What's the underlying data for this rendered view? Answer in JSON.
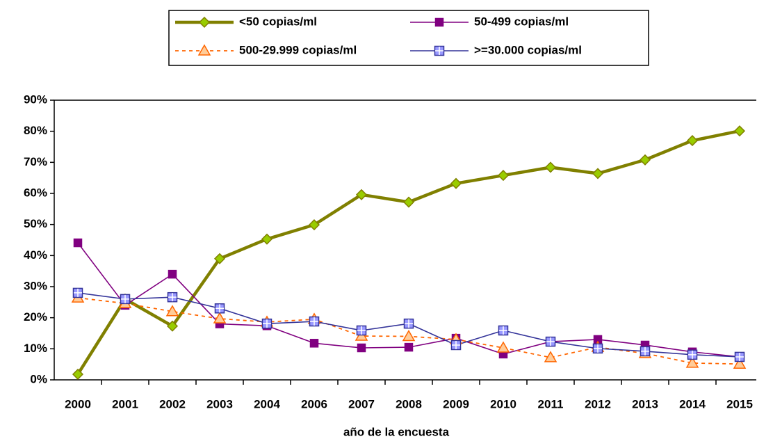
{
  "chart_data": {
    "type": "line",
    "x_label": "año de la encuesta",
    "categories": [
      "2000",
      "2001",
      "2002",
      "2003",
      "2004",
      "2006",
      "2007",
      "2008",
      "2009",
      "2010",
      "2011",
      "2012",
      "2013",
      "2014",
      "2015"
    ],
    "series": [
      {
        "name": "<50 copias/ml",
        "color": "#808000",
        "values": [
          1.8,
          26,
          17.3,
          39,
          45.3,
          49.9,
          59.6,
          57.2,
          63.2,
          65.8,
          68.4,
          66.4,
          70.8,
          77,
          80.1
        ]
      },
      {
        "name": "50-499 copias/ml",
        "color": "#800080",
        "values": [
          44.1,
          24,
          34,
          18,
          17.4,
          11.8,
          10.3,
          10.5,
          13.4,
          8.3,
          12.3,
          13,
          11.2,
          9,
          7.4
        ]
      },
      {
        "name": "500-29.999 copias/ml",
        "color": "#ff6600",
        "values": [
          26.4,
          24.6,
          22,
          19.7,
          18.6,
          19.5,
          14.1,
          14,
          13,
          10.3,
          7.2,
          10.5,
          8.5,
          5.4,
          5.1
        ]
      },
      {
        "name": ">=30.000 copias/ml",
        "color": "#333399",
        "values": [
          28,
          26,
          26.6,
          23,
          18.1,
          18.8,
          15.9,
          18.1,
          11.2,
          15.9,
          12.3,
          10.1,
          9.2,
          8.1,
          7.4
        ]
      }
    ],
    "ylim": [
      0,
      90
    ],
    "yticks": [
      {
        "value": 0,
        "label": "0%"
      },
      {
        "value": 10,
        "label": "10%"
      },
      {
        "value": 20,
        "label": "20%"
      },
      {
        "value": 30,
        "label": "30%"
      },
      {
        "value": 40,
        "label": "40%"
      },
      {
        "value": 50,
        "label": "50%"
      },
      {
        "value": 60,
        "label": "60%"
      },
      {
        "value": 70,
        "label": "70%"
      },
      {
        "value": 80,
        "label": "80%"
      },
      {
        "value": 90,
        "label": "90%"
      }
    ],
    "legend": "top"
  }
}
